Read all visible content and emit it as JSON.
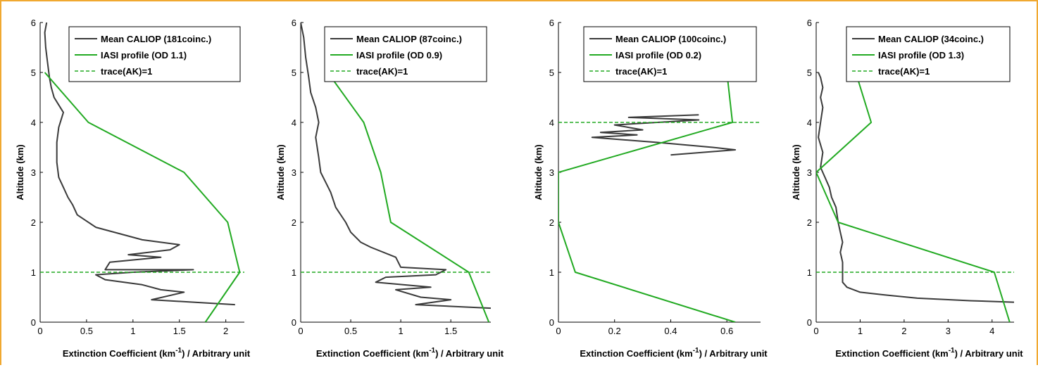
{
  "colors": {
    "caliop": "#3a3a3a",
    "iasi": "#22aa22",
    "ak": "#22aa22",
    "border": "#f0a830"
  },
  "chart_data": [
    {
      "type": "line",
      "xlabel_parts": [
        "Extinction Coefficient (km",
        "-1",
        ") / Arbitrary unit"
      ],
      "ylabel": "Altitude (km)",
      "xlim": [
        0,
        2.2
      ],
      "ylim": [
        0,
        6
      ],
      "xticks": [
        0,
        0.5,
        1,
        1.5,
        2
      ],
      "xtick_labels": [
        "0",
        "0.5",
        "1",
        "1.5",
        "2"
      ],
      "yticks": [
        0,
        1,
        2,
        3,
        4,
        5,
        6
      ],
      "ytick_labels": [
        "0",
        "1",
        "2",
        "3",
        "4",
        "5",
        "6"
      ],
      "legend_position": "top-right",
      "series": [
        {
          "name": "Mean CALIOP (181coinc.)",
          "style": "solid",
          "color_key": "caliop",
          "points": [
            [
              2.1,
              0.35
            ],
            [
              1.2,
              0.45
            ],
            [
              1.55,
              0.6
            ],
            [
              1.3,
              0.65
            ],
            [
              1.1,
              0.75
            ],
            [
              0.7,
              0.85
            ],
            [
              0.6,
              0.95
            ],
            [
              1.0,
              1.0
            ],
            [
              1.65,
              1.05
            ],
            [
              0.7,
              1.05
            ],
            [
              0.75,
              1.2
            ],
            [
              1.3,
              1.3
            ],
            [
              0.95,
              1.35
            ],
            [
              1.4,
              1.45
            ],
            [
              1.5,
              1.55
            ],
            [
              1.1,
              1.65
            ],
            [
              0.6,
              1.9
            ],
            [
              0.4,
              2.15
            ],
            [
              0.35,
              2.35
            ],
            [
              0.3,
              2.5
            ],
            [
              0.25,
              2.7
            ],
            [
              0.2,
              2.9
            ],
            [
              0.18,
              3.2
            ],
            [
              0.18,
              3.6
            ],
            [
              0.2,
              3.9
            ],
            [
              0.25,
              4.2
            ],
            [
              0.2,
              4.35
            ],
            [
              0.15,
              4.5
            ],
            [
              0.12,
              4.7
            ],
            [
              0.1,
              4.9
            ],
            [
              0.08,
              5.2
            ],
            [
              0.06,
              5.5
            ],
            [
              0.05,
              5.8
            ],
            [
              0.07,
              6.0
            ]
          ]
        },
        {
          "name": "IASI profile (OD 1.1)",
          "style": "solid",
          "color_key": "iasi",
          "points": [
            [
              1.78,
              0
            ],
            [
              2.15,
              1
            ],
            [
              2.02,
              2
            ],
            [
              1.55,
              3
            ],
            [
              0.52,
              4
            ],
            [
              0.05,
              5
            ]
          ]
        },
        {
          "name": "trace(AK)=1",
          "style": "dashed",
          "color_key": "ak",
          "points": [
            [
              0,
              1
            ],
            [
              2.2,
              1
            ]
          ]
        }
      ]
    },
    {
      "type": "line",
      "xlabel_parts": [
        "Extinction Coefficient (km",
        "-1",
        ") / Arbitrary unit"
      ],
      "ylabel": "Altitude (km)",
      "xlim": [
        0,
        1.9
      ],
      "ylim": [
        0,
        6
      ],
      "xticks": [
        0,
        0.5,
        1,
        1.5
      ],
      "xtick_labels": [
        "0",
        "0.5",
        "1",
        "1.5"
      ],
      "yticks": [
        0,
        1,
        2,
        3,
        4,
        5,
        6
      ],
      "ytick_labels": [
        "0",
        "1",
        "2",
        "3",
        "4",
        "5",
        "6"
      ],
      "legend_position": "top-right",
      "series": [
        {
          "name": "Mean CALIOP (87coinc.)",
          "style": "solid",
          "color_key": "caliop",
          "points": [
            [
              1.9,
              0.28
            ],
            [
              1.15,
              0.35
            ],
            [
              1.5,
              0.45
            ],
            [
              1.2,
              0.5
            ],
            [
              0.95,
              0.65
            ],
            [
              1.3,
              0.7
            ],
            [
              0.75,
              0.8
            ],
            [
              0.85,
              0.9
            ],
            [
              1.35,
              0.95
            ],
            [
              1.45,
              1.05
            ],
            [
              1.0,
              1.1
            ],
            [
              0.95,
              1.3
            ],
            [
              0.7,
              1.5
            ],
            [
              0.6,
              1.6
            ],
            [
              0.5,
              1.8
            ],
            [
              0.45,
              2.0
            ],
            [
              0.35,
              2.3
            ],
            [
              0.3,
              2.6
            ],
            [
              0.25,
              2.8
            ],
            [
              0.2,
              3.0
            ],
            [
              0.18,
              3.3
            ],
            [
              0.15,
              3.7
            ],
            [
              0.18,
              4.0
            ],
            [
              0.15,
              4.3
            ],
            [
              0.1,
              4.6
            ],
            [
              0.08,
              4.9
            ],
            [
              0.05,
              5.3
            ],
            [
              0.03,
              5.7
            ],
            [
              0.0,
              6.0
            ]
          ]
        },
        {
          "name": "IASI profile (OD 0.9)",
          "style": "solid",
          "color_key": "iasi",
          "points": [
            [
              1.88,
              0
            ],
            [
              1.68,
              1
            ],
            [
              0.9,
              2
            ],
            [
              0.8,
              3
            ],
            [
              0.63,
              4
            ],
            [
              0.27,
              5
            ]
          ]
        },
        {
          "name": "trace(AK)=1",
          "style": "dashed",
          "color_key": "ak",
          "points": [
            [
              0,
              1
            ],
            [
              1.9,
              1
            ]
          ]
        }
      ]
    },
    {
      "type": "line",
      "xlabel_parts": [
        "Extinction Coefficient (km",
        "-1",
        ") / Arbitrary unit"
      ],
      "ylabel": "Altitude (km)",
      "xlim": [
        0,
        0.72
      ],
      "ylim": [
        0,
        6
      ],
      "xticks": [
        0,
        0.2,
        0.4,
        0.6
      ],
      "xtick_labels": [
        "0",
        "0.2",
        "0.4",
        "0.6"
      ],
      "yticks": [
        0,
        1,
        2,
        3,
        4,
        5,
        6
      ],
      "ytick_labels": [
        "0",
        "1",
        "2",
        "3",
        "4",
        "5",
        "6"
      ],
      "legend_position": "top-right",
      "series": [
        {
          "name": "Mean CALIOP (100coinc.)",
          "style": "solid",
          "color_key": "caliop",
          "points": [
            [
              0.5,
              4.15
            ],
            [
              0.25,
              4.1
            ],
            [
              0.5,
              4.05
            ],
            [
              0.2,
              3.95
            ],
            [
              0.3,
              3.85
            ],
            [
              0.15,
              3.8
            ],
            [
              0.28,
              3.75
            ],
            [
              0.12,
              3.7
            ],
            [
              0.35,
              3.6
            ],
            [
              0.55,
              3.5
            ],
            [
              0.63,
              3.45
            ],
            [
              0.4,
              3.35
            ]
          ]
        },
        {
          "name": "IASI profile (OD 0.2)",
          "style": "solid",
          "color_key": "iasi",
          "points": [
            [
              0.63,
              0
            ],
            [
              0.06,
              1
            ],
            [
              0.0,
              2
            ],
            [
              0.0,
              3
            ],
            [
              0.62,
              4
            ],
            [
              0.6,
              5
            ]
          ]
        },
        {
          "name": "trace(AK)=1",
          "style": "dashed",
          "color_key": "ak",
          "points": [
            [
              0,
              4
            ],
            [
              0.72,
              4
            ]
          ]
        }
      ]
    },
    {
      "type": "line",
      "xlabel_parts": [
        "Extinction Coefficient (km",
        "-1",
        ") / Arbitrary unit"
      ],
      "ylabel": "Altitude (km)",
      "xlim": [
        0,
        4.5
      ],
      "ylim": [
        0,
        6
      ],
      "xticks": [
        0,
        1,
        2,
        3,
        4
      ],
      "xtick_labels": [
        "0",
        "1",
        "2",
        "3",
        "4"
      ],
      "yticks": [
        0,
        1,
        2,
        3,
        4,
        5,
        6
      ],
      "ytick_labels": [
        "0",
        "1",
        "2",
        "3",
        "4",
        "5",
        "6"
      ],
      "legend_position": "top-right",
      "series": [
        {
          "name": "Mean CALIOP (34coinc.)",
          "style": "solid",
          "color_key": "caliop",
          "points": [
            [
              4.5,
              0.4
            ],
            [
              3.5,
              0.43
            ],
            [
              2.3,
              0.48
            ],
            [
              1.5,
              0.55
            ],
            [
              1.0,
              0.6
            ],
            [
              0.7,
              0.7
            ],
            [
              0.6,
              0.8
            ],
            [
              0.6,
              1.0
            ],
            [
              0.6,
              1.2
            ],
            [
              0.55,
              1.4
            ],
            [
              0.6,
              1.6
            ],
            [
              0.55,
              1.8
            ],
            [
              0.5,
              2.0
            ],
            [
              0.45,
              2.3
            ],
            [
              0.35,
              2.5
            ],
            [
              0.3,
              2.7
            ],
            [
              0.2,
              2.9
            ],
            [
              0.1,
              3.1
            ],
            [
              0.15,
              3.4
            ],
            [
              0.05,
              3.7
            ],
            [
              0.1,
              4.0
            ],
            [
              0.15,
              4.3
            ],
            [
              0.1,
              4.5
            ],
            [
              0.15,
              4.7
            ],
            [
              0.1,
              4.9
            ],
            [
              0.05,
              5.0
            ]
          ]
        },
        {
          "name": "IASI profile (OD 1.3)",
          "style": "solid",
          "color_key": "iasi",
          "points": [
            [
              4.4,
              0
            ],
            [
              4.05,
              1
            ],
            [
              0.5,
              2
            ],
            [
              0.0,
              3
            ],
            [
              1.25,
              4
            ],
            [
              0.9,
              5
            ]
          ]
        },
        {
          "name": "trace(AK)=1",
          "style": "dashed",
          "color_key": "ak",
          "points": [
            [
              0,
              1
            ],
            [
              4.5,
              1
            ]
          ]
        }
      ]
    }
  ]
}
